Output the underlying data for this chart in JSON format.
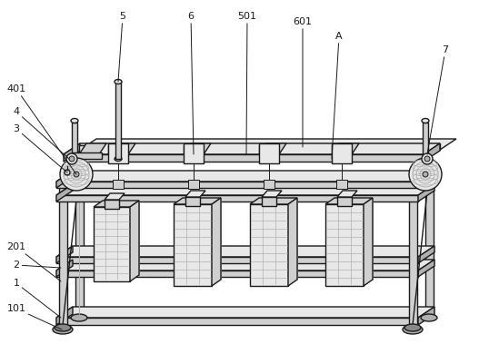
{
  "bg_color": "#ffffff",
  "lc": "#1a1a1a",
  "fg": "#e8e8e8",
  "fm": "#d0d0d0",
  "mg": "#b0b0b0",
  "dg": "#888888",
  "figsize": [
    5.38,
    3.9
  ],
  "dpi": 100
}
